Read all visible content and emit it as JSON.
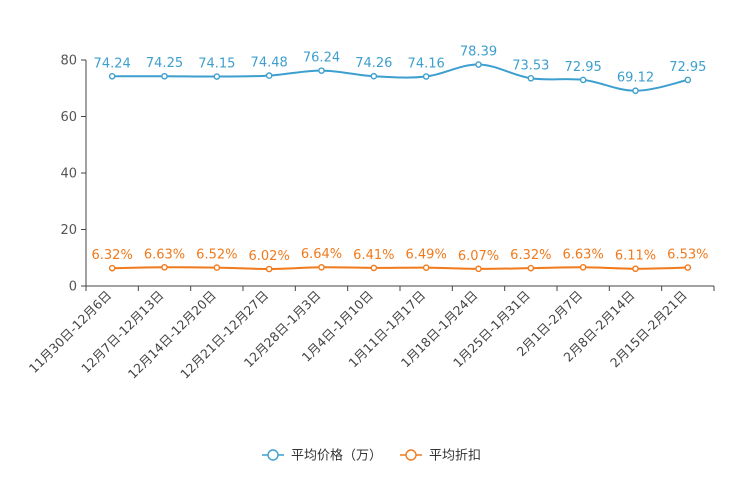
{
  "chart_data": {
    "type": "line",
    "title": "",
    "xlabel": "",
    "ylabel": "",
    "ylim": [
      0,
      80
    ],
    "yticks": [
      0,
      20,
      40,
      60,
      80
    ],
    "grid": false,
    "legend_position": "bottom-center",
    "categories": [
      "11月30日-12月6日",
      "12月7日-12月13日",
      "12月14日-12月20日",
      "12月21日-12月27日",
      "12月28日-1月3日",
      "1月4日-1月10日",
      "1月11日-1月17日",
      "1月18日-1月24日",
      "1月25日-1月31日",
      "2月1日-2月7日",
      "2月8日-2月14日",
      "2月15日-2月21日"
    ],
    "series": [
      {
        "name": "平均价格（万）",
        "color": "#3d9fcf",
        "values": [
          74.24,
          74.25,
          74.15,
          74.48,
          76.24,
          74.26,
          74.16,
          78.39,
          73.53,
          72.95,
          69.12,
          72.95
        ],
        "labels": [
          "74.24",
          "74.25",
          "74.15",
          "74.48",
          "76.24",
          "74.26",
          "74.16",
          "78.39",
          "73.53",
          "72.95",
          "69.12",
          "72.95"
        ]
      },
      {
        "name": "平均折扣",
        "color": "#f07a1c",
        "values": [
          6.32,
          6.63,
          6.52,
          6.02,
          6.64,
          6.41,
          6.49,
          6.07,
          6.32,
          6.63,
          6.11,
          6.53
        ],
        "labels": [
          "6.32%",
          "6.63%",
          "6.52%",
          "6.02%",
          "6.64%",
          "6.41%",
          "6.49%",
          "6.07%",
          "6.32%",
          "6.63%",
          "6.11%",
          "6.53%"
        ]
      }
    ]
  }
}
